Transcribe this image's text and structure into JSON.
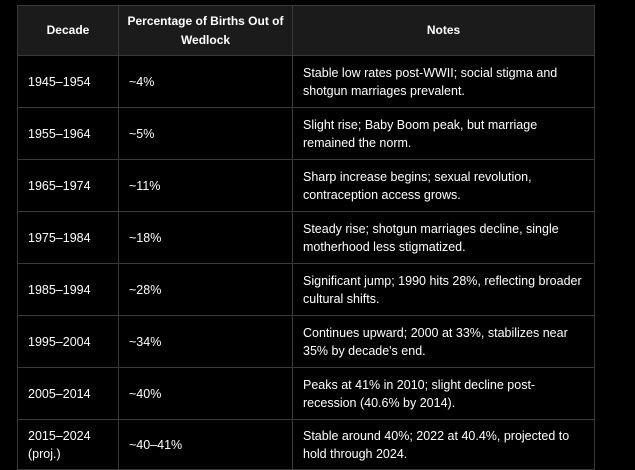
{
  "table": {
    "headers": [
      "Decade",
      "Percentage of Births Out of Wedlock",
      "Notes"
    ],
    "rows": [
      {
        "decade": "1945–1954",
        "percentage": "~4%",
        "notes": "Stable low rates post-WWII; social stigma and shotgun marriages prevalent."
      },
      {
        "decade": "1955–1964",
        "percentage": "~5%",
        "notes": "Slight rise; Baby Boom peak, but marriage remained the norm."
      },
      {
        "decade": "1965–1974",
        "percentage": "~11%",
        "notes": "Sharp increase begins; sexual revolution, contraception access grows."
      },
      {
        "decade": "1975–1984",
        "percentage": "~18%",
        "notes": "Steady rise; shotgun marriages decline, single motherhood less stigmatized."
      },
      {
        "decade": "1985–1994",
        "percentage": "~28%",
        "notes": "Significant jump; 1990 hits 28%, reflecting broader cultural shifts."
      },
      {
        "decade": "1995–2004",
        "percentage": "~34%",
        "notes": "Continues upward; 2000 at 33%, stabilizes near 35% by decade's end."
      },
      {
        "decade": "2005–2014",
        "percentage": "~40%",
        "notes": "Peaks at 41% in 2010; slight decline post-recession (40.6% by 2014)."
      },
      {
        "decade": "2015–2024 (proj.)",
        "percentage": "~40–41%",
        "notes": "Stable around 40%; 2022 at 40.4%, projected to hold through 2024."
      }
    ]
  },
  "colors": {
    "background": "#000000",
    "header_bg": "#1b1b1b",
    "border": "#3a3a3a",
    "text": "#ffffff"
  }
}
